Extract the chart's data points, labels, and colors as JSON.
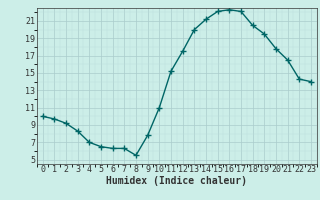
{
  "x": [
    0,
    1,
    2,
    3,
    4,
    5,
    6,
    7,
    8,
    9,
    10,
    11,
    12,
    13,
    14,
    15,
    16,
    17,
    18,
    19,
    20,
    21,
    22,
    23
  ],
  "y": [
    10.0,
    9.7,
    9.2,
    8.3,
    7.0,
    6.5,
    6.3,
    6.3,
    5.5,
    7.8,
    11.0,
    15.2,
    17.5,
    20.0,
    21.2,
    22.1,
    22.3,
    22.1,
    20.5,
    19.5,
    17.8,
    16.5,
    14.3,
    14.0
  ],
  "line_color": "#006666",
  "marker": "D",
  "marker_size": 2.0,
  "line_width": 1.0,
  "bg_color": "#cceee8",
  "grid_color_major": "#aacccc",
  "grid_color_minor": "#bbdddd",
  "tick_color": "#333333",
  "xlabel": "Humidex (Indice chaleur)",
  "xlim": [
    -0.5,
    23.5
  ],
  "ylim": [
    4.5,
    22.5
  ],
  "yticks": [
    5,
    7,
    9,
    11,
    13,
    15,
    17,
    19,
    21
  ],
  "xticks": [
    0,
    1,
    2,
    3,
    4,
    5,
    6,
    7,
    8,
    9,
    10,
    11,
    12,
    13,
    14,
    15,
    16,
    17,
    18,
    19,
    20,
    21,
    22,
    23
  ],
  "font_size": 6.0,
  "xlabel_fontsize": 7.0
}
